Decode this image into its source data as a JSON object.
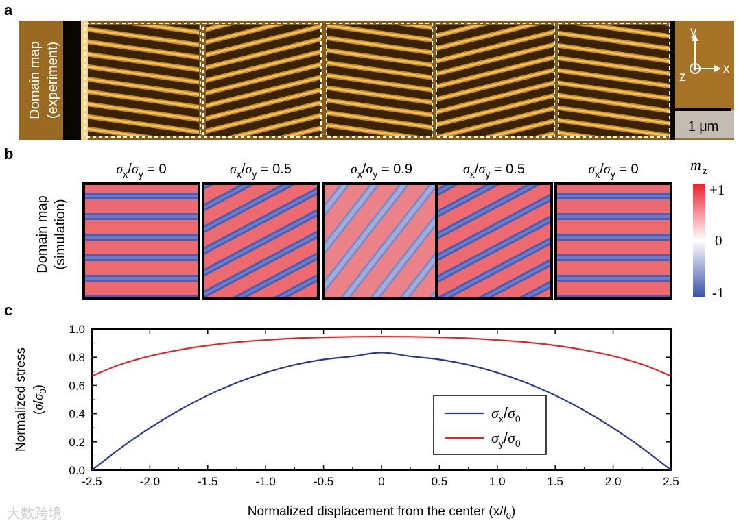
{
  "panel_a": {
    "letter": "a",
    "row_label": [
      "Domain map",
      "(experiment)"
    ],
    "axes": {
      "y": "y",
      "x": "x",
      "z": "z"
    },
    "scale_bar": "1 μm"
  },
  "panel_b": {
    "letter": "b",
    "row_label": [
      "Domain map",
      "(simulation)"
    ],
    "panels": [
      {
        "ratio": "0",
        "orientation": "horizontal"
      },
      {
        "ratio": "0.5",
        "orientation": "diagonal"
      },
      {
        "ratio": "0.9",
        "orientation": "steep-diagonal"
      },
      {
        "ratio": "0.5",
        "orientation": "diagonal"
      },
      {
        "ratio": "0",
        "orientation": "horizontal"
      }
    ],
    "title_prefix": "σx/σy = ",
    "colorbar": {
      "label": "m",
      "label_sub": "z",
      "top": "+1",
      "mid": "0",
      "bottom": "-1",
      "colors": {
        "pos": "#e8232e",
        "neg": "#3b4fa8"
      }
    }
  },
  "panel_c": {
    "letter": "c"
  },
  "watermark": "大数跨境",
  "chart_data": {
    "type": "line",
    "title": "",
    "xlabel": "Normalized displacement from the center (x/l0)",
    "ylabel": "Normalized stress (σ/σ0)",
    "xlim": [
      -2.5,
      2.5
    ],
    "ylim": [
      0.0,
      1.0
    ],
    "xticks": [
      "-2.5",
      "-2.0",
      "-1.5",
      "-1.0",
      "-0.5",
      "0",
      "0.5",
      "1.0",
      "1.5",
      "2.0",
      "2.5"
    ],
    "yticks": [
      "0.0",
      "0.2",
      "0.4",
      "0.6",
      "0.8",
      "1.0"
    ],
    "legend_position": "bottom-right",
    "series": [
      {
        "name": "σx/σ0",
        "color": "#2b3a8f",
        "x": [
          -2.5,
          -2.25,
          -2.0,
          -1.75,
          -1.5,
          -1.25,
          -1.0,
          -0.75,
          -0.5,
          -0.25,
          0,
          0.25,
          0.5,
          0.75,
          1.0,
          1.25,
          1.5,
          1.75,
          2.0,
          2.25,
          2.5
        ],
        "values": [
          0.0,
          0.158,
          0.299,
          0.423,
          0.53,
          0.619,
          0.691,
          0.746,
          0.784,
          0.806,
          0.833,
          0.806,
          0.784,
          0.746,
          0.691,
          0.619,
          0.53,
          0.423,
          0.299,
          0.158,
          0.0
        ]
      },
      {
        "name": "σy/σ0",
        "color": "#e0262b",
        "x": [
          -2.5,
          -2.25,
          -2.0,
          -1.75,
          -1.5,
          -1.25,
          -1.0,
          -0.75,
          -0.5,
          -0.25,
          0,
          0.25,
          0.5,
          0.75,
          1.0,
          1.25,
          1.5,
          1.75,
          2.0,
          2.25,
          2.5
        ],
        "values": [
          0.667,
          0.75,
          0.808,
          0.851,
          0.883,
          0.906,
          0.922,
          0.934,
          0.941,
          0.945,
          0.946,
          0.945,
          0.941,
          0.934,
          0.922,
          0.906,
          0.883,
          0.851,
          0.808,
          0.75,
          0.667
        ]
      }
    ]
  }
}
